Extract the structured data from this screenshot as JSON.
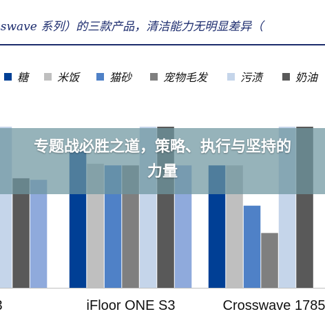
{
  "overlay": {
    "headline": "专题战必胜之道，策略、执行与坚持的力量"
  },
  "chart_data": {
    "type": "bar",
    "title": "sswave 系列）的三款产品，清洁能力无明显差异（",
    "categories": [
      "3",
      "iFloor ONE S3",
      "Crosswave 1785"
    ],
    "series": [
      {
        "name": "糖",
        "color": "#003f95",
        "values": [
          null,
          85,
          76
        ]
      },
      {
        "name": "米饭",
        "color": "#bfbfbf",
        "values": [
          null,
          77,
          76
        ]
      },
      {
        "name": "猫砂",
        "color": "#4f81c7",
        "values": [
          null,
          76,
          51
        ]
      },
      {
        "name": "宠物毛发",
        "color": "#7f7f7f",
        "values": [
          null,
          76,
          34
        ]
      },
      {
        "name": "污渍",
        "color": "#c5d5ea",
        "values": [
          100,
          100,
          100
        ]
      },
      {
        "name": "奶油",
        "color": "#595959",
        "values": [
          68,
          100,
          100
        ]
      },
      {
        "name": "",
        "color": "#8faadc",
        "values": [
          67,
          76,
          null
        ]
      }
    ],
    "ylim": [
      0,
      100
    ],
    "xlabel": "",
    "ylabel": "",
    "grid": false,
    "legend": "top"
  }
}
